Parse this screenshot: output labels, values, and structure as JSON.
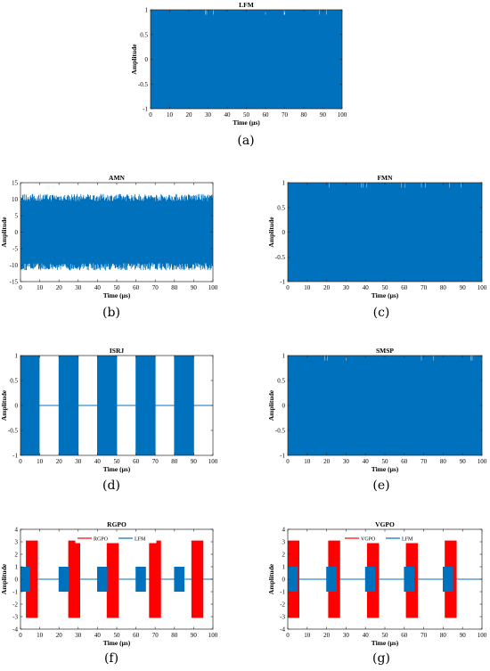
{
  "chart_data": [
    {
      "id": "a",
      "type": "line",
      "caption": "(a)",
      "title": "LFM",
      "xlabel": "Time (μs)",
      "ylabel": "Amplitude",
      "xlim": [
        0,
        100
      ],
      "ylim": [
        -1,
        1
      ],
      "xticks": [
        "0",
        "10",
        "20",
        "30",
        "40",
        "50",
        "60",
        "70",
        "80",
        "90",
        "100"
      ],
      "yticks": [
        "-1",
        "-0.5",
        "0",
        "0.5",
        "1"
      ],
      "signal": "continuous",
      "amplitude": 1,
      "series": [
        {
          "values_note": "",
          "color": "#0072BD"
        }
      ]
    },
    {
      "id": "b",
      "type": "line",
      "caption": "(b)",
      "title": "AMN",
      "xlabel": "Time (μs)",
      "ylabel": "Amplitude",
      "xlim": [
        0,
        100
      ],
      "ylim": [
        -15,
        15
      ],
      "xticks": [
        "0",
        "10",
        "20",
        "30",
        "40",
        "50",
        "60",
        "70",
        "80",
        "90",
        "100"
      ],
      "yticks": [
        "-15",
        "-10",
        "-5",
        "0",
        "5",
        "10",
        "15"
      ],
      "signal": "continuous",
      "amplitude": 10.5,
      "noise_peak": 12,
      "series": [
        {
          "color": "#0072BD"
        }
      ]
    },
    {
      "id": "c",
      "type": "line",
      "caption": "(c)",
      "title": "FMN",
      "xlabel": "Time (μs)",
      "ylabel": "Amplitude",
      "xlim": [
        0,
        100
      ],
      "ylim": [
        -1,
        1
      ],
      "xticks": [
        "0",
        "10",
        "20",
        "30",
        "40",
        "50",
        "60",
        "70",
        "80",
        "90",
        "100"
      ],
      "yticks": [
        "-1",
        "-0.5",
        "0",
        "0.5",
        "1"
      ],
      "signal": "continuous",
      "amplitude": 1,
      "series": [
        {
          "color": "#0072BD"
        }
      ]
    },
    {
      "id": "d",
      "type": "line",
      "caption": "(d)",
      "title": "ISRJ",
      "xlabel": "Time (μs)",
      "ylabel": "Amplitude",
      "xlim": [
        0,
        100
      ],
      "ylim": [
        -1,
        1
      ],
      "xticks": [
        "0",
        "10",
        "20",
        "30",
        "40",
        "50",
        "60",
        "70",
        "80",
        "90",
        "100"
      ],
      "yticks": [
        "-1",
        "-0.5",
        "0",
        "0.5",
        "1"
      ],
      "signal": "bursts",
      "amplitude": 1,
      "bursts": [
        [
          0,
          10
        ],
        [
          20,
          30
        ],
        [
          40,
          50
        ],
        [
          60,
          70
        ],
        [
          80,
          90
        ]
      ],
      "series": [
        {
          "color": "#0072BD"
        }
      ]
    },
    {
      "id": "e",
      "type": "line",
      "caption": "(e)",
      "title": "SMSP",
      "xlabel": "Time (μs)",
      "ylabel": "Amplitude",
      "xlim": [
        0,
        100
      ],
      "ylim": [
        -1,
        1
      ],
      "xticks": [
        "0",
        "10",
        "20",
        "30",
        "40",
        "50",
        "60",
        "70",
        "80",
        "90",
        "100"
      ],
      "yticks": [
        "-1",
        "-0.5",
        "0",
        "0.5",
        "1"
      ],
      "signal": "continuous",
      "amplitude": 1,
      "series": [
        {
          "color": "#0072BD"
        }
      ]
    },
    {
      "id": "f",
      "type": "line",
      "caption": "(f)",
      "title": "RGPO",
      "xlabel": "Time (μs)",
      "ylabel": "Amplitude",
      "xlim": [
        0,
        100
      ],
      "ylim": [
        -4,
        4
      ],
      "xticks": [
        "0",
        "10",
        "20",
        "30",
        "40",
        "50",
        "60",
        "70",
        "80",
        "90",
        "100"
      ],
      "yticks": [
        "-4",
        "-3",
        "-2",
        "-1",
        "0",
        "1",
        "2",
        "3",
        "4"
      ],
      "signal": "pulses",
      "legend_placement": "top-center",
      "series": [
        {
          "name": "RGPO",
          "color": "#FF0000",
          "amplitude": 3.1,
          "bursts": [
            [
              3,
              9
            ],
            [
              25,
              31
            ],
            [
              45,
              51
            ],
            [
              67,
              73
            ],
            [
              89,
              95
            ]
          ]
        },
        {
          "name": "LFM",
          "color": "#0072BD",
          "amplitude": 1,
          "bursts": [
            [
              0,
              5
            ],
            [
              20,
              25
            ],
            [
              40,
              45
            ],
            [
              60,
              65
            ],
            [
              80,
              85
            ]
          ]
        }
      ]
    },
    {
      "id": "g",
      "type": "line",
      "caption": "(g)",
      "title": "VGPO",
      "xlabel": "Time (μs)",
      "ylabel": "Amplitude",
      "xlim": [
        0,
        100
      ],
      "ylim": [
        -4,
        4
      ],
      "xticks": [
        "0",
        "10",
        "20",
        "30",
        "40",
        "50",
        "60",
        "70",
        "80",
        "90",
        "100"
      ],
      "yticks": [
        "-4",
        "-3",
        "-2",
        "-1",
        "0",
        "1",
        "2",
        "3",
        "4"
      ],
      "signal": "pulses",
      "legend_placement": "top-center",
      "series": [
        {
          "name": "VGPO",
          "color": "#FF0000",
          "amplitude": 3.1,
          "bursts": [
            [
              0,
              6
            ],
            [
              21,
              27
            ],
            [
              41,
              47
            ],
            [
              61,
              67
            ],
            [
              81,
              87
            ]
          ]
        },
        {
          "name": "LFM",
          "color": "#0072BD",
          "amplitude": 1,
          "bursts": [
            [
              0,
              5
            ],
            [
              20,
              25
            ],
            [
              40,
              45
            ],
            [
              60,
              65
            ],
            [
              80,
              85
            ]
          ]
        }
      ]
    }
  ]
}
